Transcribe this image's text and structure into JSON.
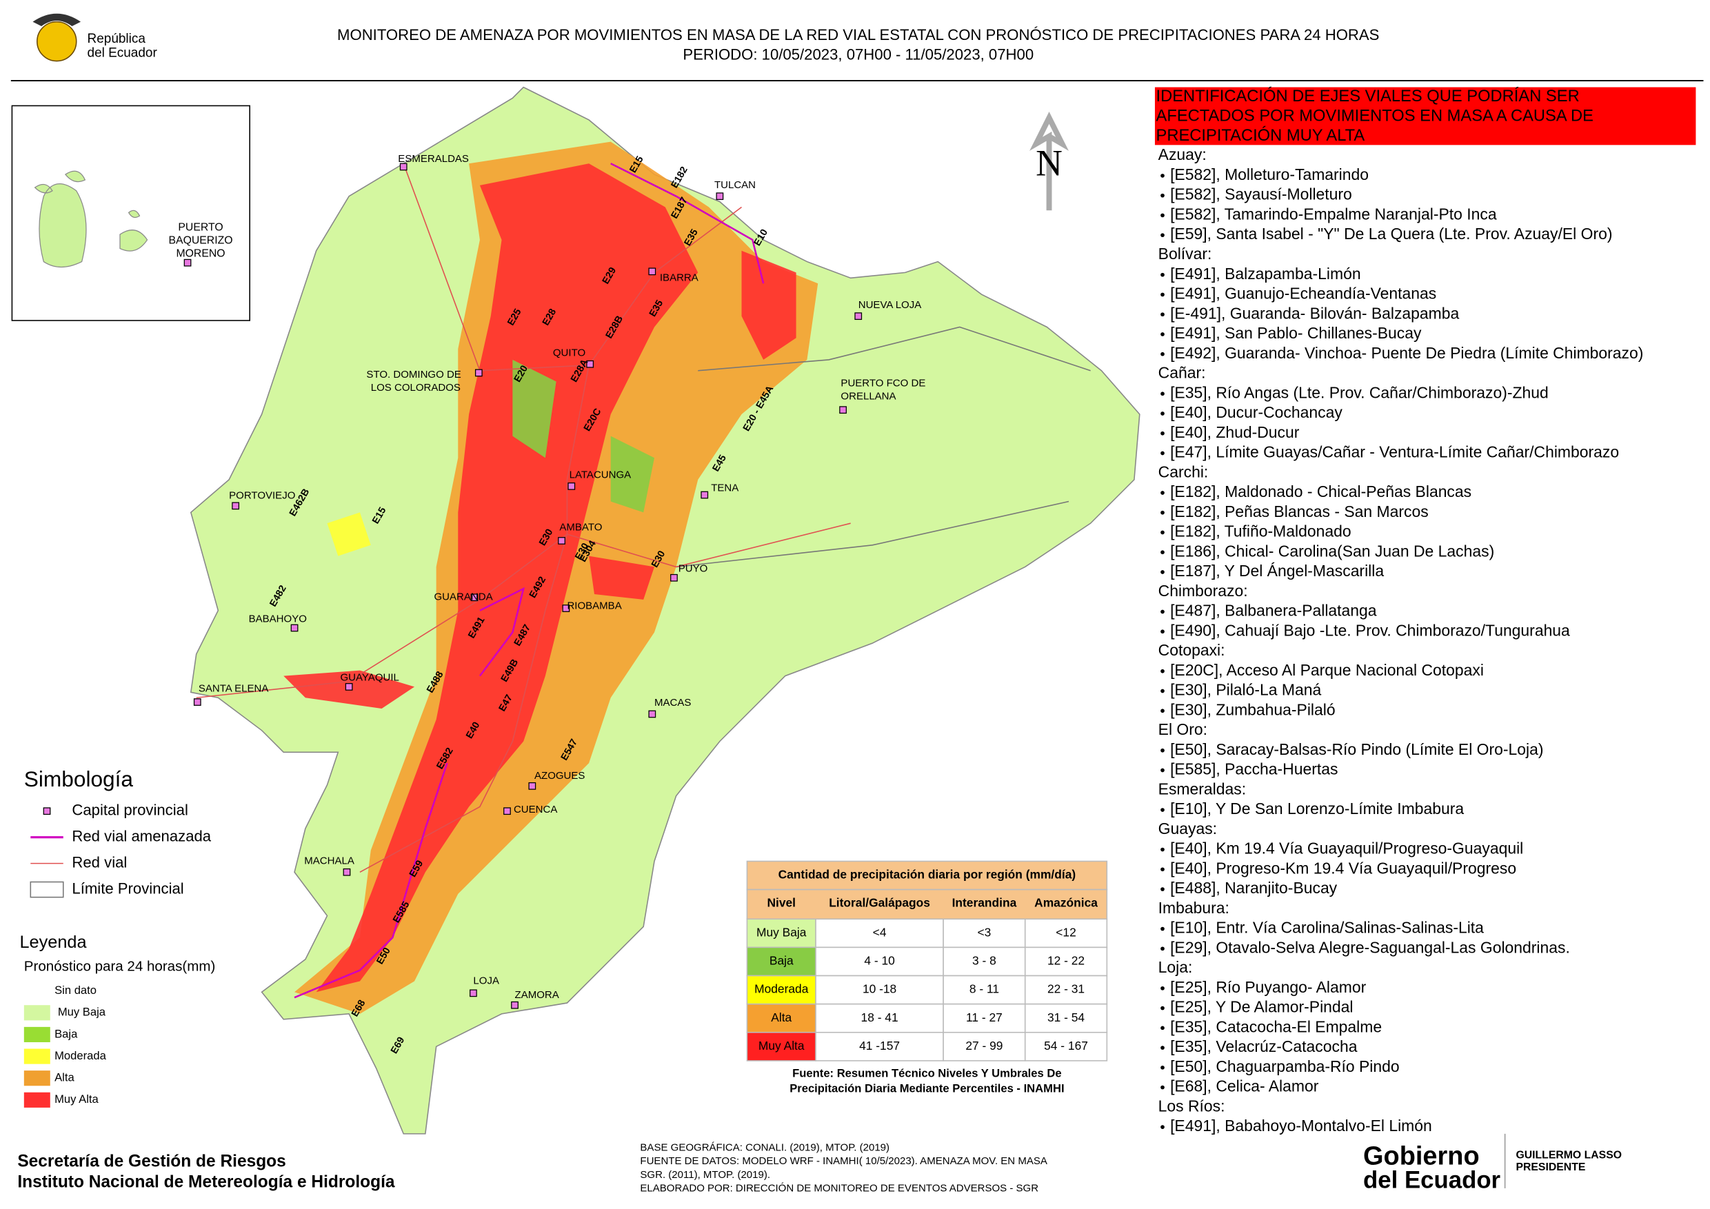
{
  "header": {
    "logo_text": [
      "República",
      "del Ecuador"
    ],
    "title_line1": "MONITOREO DE AMENAZA POR MOVIMIENTOS EN MASA DE LA RED VIAL  ESTATAL  CON PRONÓSTICO  DE  PRECIPITACIONES PARA 24 HORAS",
    "title_line2": "PERIODO: 10/05/2023, 07H00 - 11/05/2023, 07H00"
  },
  "inset": {
    "label": [
      "PUERTO",
      "BAQUERIZO",
      "MORENO"
    ]
  },
  "north": "N",
  "cities": [
    "ESMERALDAS",
    "TULCAN",
    "IBARRA",
    "NUEVA LOJA",
    "QUITO",
    "STO. DOMINGO DE",
    "LOS COLORADOS",
    "PUERTO FCO DE",
    "ORELLANA",
    "LATACUNGA",
    "TENA",
    "PORTOVIEJO",
    "AMBATO",
    "PUYO",
    "GUARANDA",
    "RIOBAMBA",
    "BABAHOYO",
    "SANTA ELENA",
    "GUAYAQUIL",
    "MACAS",
    "AZOGUES",
    "CUENCA",
    "MACHALA",
    "LOJA",
    "ZAMORA"
  ],
  "roads": [
    "E15",
    "E182",
    "E187",
    "E35",
    "E10",
    "E29",
    "E25",
    "E28",
    "E28B",
    "E35",
    "E20",
    "E28A",
    "E20C",
    "E20 - E45A",
    "E45",
    "E462B",
    "E15",
    "E30",
    "E30",
    "E304",
    "E30",
    "E482",
    "E492",
    "E491",
    "E487",
    "E49B",
    "E488",
    "E47",
    "E40",
    "E582",
    "E547",
    "E59",
    "E585",
    "E50",
    "E68",
    "E69"
  ],
  "symbology": {
    "title": "Simbología",
    "items": [
      "Capital provincial",
      "Red vial amenazada",
      "Red vial",
      "Límite Provincial"
    ]
  },
  "legend": {
    "title": "Leyenda",
    "subtitle": "Pronóstico para 24 horas(mm)",
    "items": [
      "Sin dato",
      "Muy Baja",
      "Baja",
      "Moderada",
      "Alta",
      "Muy Alta"
    ]
  },
  "table": {
    "title": "Cantidad de precipitación diaria por región (mm/día)",
    "headers": [
      "Nivel",
      "Litoral/Galápagos",
      "Interandina",
      "Amazónica"
    ],
    "rows": [
      [
        "Muy Baja",
        "<4",
        "<3",
        "<12"
      ],
      [
        "Baja",
        "4 - 10",
        "3 - 8",
        "12 - 22"
      ],
      [
        "Moderada",
        "10 -18",
        "8 - 11",
        "22 - 31"
      ],
      [
        "Alta",
        "18 - 41",
        "11 - 27",
        "31 - 54"
      ],
      [
        "Muy Alta",
        "41 -157",
        "27 - 99",
        "54 - 167"
      ]
    ],
    "source": [
      "Fuente: Resumen Técnico Niveles Y Umbrales De",
      "Precipitación Diaria Mediante Percentiles - INAMHI"
    ]
  },
  "panel": {
    "header": [
      "IDENTIFICACIÓN DE EJES VIALES QUE PODRÍAN SER",
      "AFECTADOS POR MOVIMIENTOS EN MASA A CAUSA DE",
      "PRECIPITACIÓN MUY ALTA"
    ],
    "provinces": [
      {
        "name": "Azuay:",
        "items": [
          "[E582], Molleturo-Tamarindo",
          "[E582], Sayausí-Molleturo",
          "[E582], Tamarindo-Empalme Naranjal-Pto Inca",
          "[E59], Santa Isabel - \"Y\" De La Quera (Lte. Prov. Azuay/El Oro)"
        ]
      },
      {
        "name": "Bolívar:",
        "items": [
          "[E491], Balzapamba-Limón",
          "[E491], Guanujo-Echeandía-Ventanas",
          "[E-491], Guaranda- Bilován- Balzapamba",
          "[E491], San Pablo- Chillanes-Bucay",
          "[E492], Guaranda- Vinchoa- Puente De Piedra (Límite Chimborazo)"
        ]
      },
      {
        "name": "Cañar:",
        "items": [
          "[E35], Río Angas (Lte. Prov. Cañar/Chimborazo)-Zhud",
          "[E40], Ducur-Cochancay",
          "[E40], Zhud-Ducur",
          "[E47], Límite Guayas/Cañar - Ventura-Límite Cañar/Chimborazo"
        ]
      },
      {
        "name": "Carchi:",
        "items": [
          "[E182], Maldonado - Chical-Peñas Blancas",
          "[E182], Peñas Blancas - San Marcos",
          "[E182], Tufiño-Maldonado",
          "[E186], Chical- Carolina(San Juan De Lachas)",
          "[E187], Y Del Ángel-Mascarilla"
        ]
      },
      {
        "name": "Chimborazo:",
        "items": [
          "[E487], Balbanera-Pallatanga",
          "[E490], Cahuají Bajo -Lte. Prov. Chimborazo/Tungurahua"
        ]
      },
      {
        "name": "Cotopaxi:",
        "items": [
          "[E20C], Acceso Al Parque Nacional Cotopaxi",
          "[E30], Pilaló-La Maná",
          "[E30], Zumbahua-Pilaló"
        ]
      },
      {
        "name": "El Oro:",
        "items": [
          "[E50], Saracay-Balsas-Río Pindo (Límite El Oro-Loja)",
          "[E585], Paccha-Huertas"
        ]
      },
      {
        "name": "Esmeraldas:",
        "items": [
          "[E10], Y De San Lorenzo-Límite Imbabura"
        ]
      },
      {
        "name": "Guayas:",
        "items": [
          "[E40], Km 19.4 Vía Guayaquil/Progreso-Guayaquil",
          "[E40], Progreso-Km 19.4 Vía Guayaquil/Progreso",
          "[E488], Naranjito-Bucay"
        ]
      },
      {
        "name": "Imbabura:",
        "items": [
          "[E10], Entr. Vía Carolina/Salinas-Salinas-Lita",
          "[E29], Otavalo-Selva Alegre-Saguangal-Las Golondrinas."
        ]
      },
      {
        "name": "Loja:",
        "items": [
          "[E25], Río Puyango- Alamor",
          "[E25], Y De Alamor-Pindal",
          "[E35], Catacocha-El Empalme",
          "[E35], Velacrúz-Catacocha",
          "[E50], Chaguarpamba-Río Pindo",
          "[E68], Celica- Alamor"
        ]
      },
      {
        "name": "Los Ríos:",
        "items": [
          "[E491], Babahoyo-Montalvo-El Limón"
        ]
      }
    ]
  },
  "footer": {
    "institutions": [
      "Secretaría de Gestión de Riesgos",
      "Instituto Nacional de Metereología e Hidrología"
    ],
    "base_info": [
      "BASE GEOGRÁFICA: CONALI. (2019), MTOP. (2019)",
      "FUENTE DE DATOS: MODELO WRF - INAMHI( 10/5/2023).  AMENAZA MOV. EN MASA",
      "SGR. (2011), MTOP. (2019).",
      "ELABORADO POR: DIRECCIÓN DE MONITOREO DE EVENTOS ADVERSOS - SGR"
    ],
    "gov_logo": [
      "Gobierno",
      "del Ecuador"
    ],
    "president": [
      "GUILLERMO LASSO",
      "PRESIDENTE"
    ]
  }
}
